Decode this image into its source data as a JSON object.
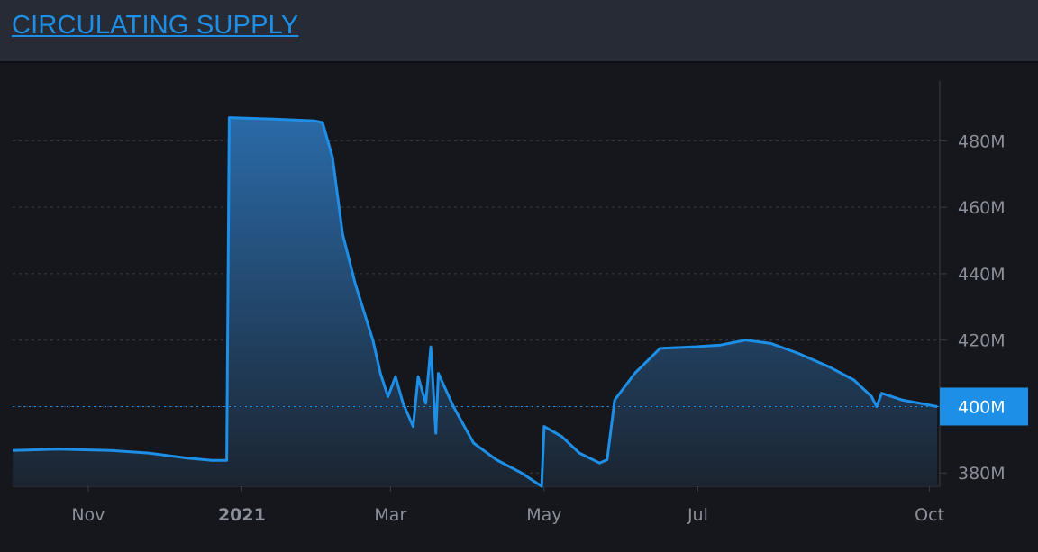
{
  "header": {
    "title": "CIRCULATING SUPPLY"
  },
  "colors": {
    "line": "#1e8fe6",
    "area_top": "#2a6aa8",
    "area_bottom": "#1b2430",
    "grid": "#3a3e48",
    "current_badge": "#1e8fe6"
  },
  "chart_data": {
    "type": "area",
    "title": "CIRCULATING SUPPLY",
    "xlabel": "",
    "ylabel": "",
    "x_ticks": [
      "Nov",
      "2021",
      "Mar",
      "May",
      "Jul",
      "Oct"
    ],
    "y_ticks": [
      "480M",
      "460M",
      "440M",
      "420M",
      "400M",
      "380M"
    ],
    "y_tick_values": [
      480,
      460,
      440,
      420,
      400,
      380
    ],
    "ylim": [
      376,
      498
    ],
    "xlim": [
      "2020-10-02",
      "2021-10-04"
    ],
    "grid": "horizontal-dashed",
    "current_value_label": "400M",
    "current_value": 400,
    "series": [
      {
        "unit": "M",
        "points": [
          [
            "2020-10-02",
            386.8
          ],
          [
            "2020-10-20",
            387.2
          ],
          [
            "2020-11-10",
            386.8
          ],
          [
            "2020-11-25",
            386.0
          ],
          [
            "2020-12-10",
            384.5
          ],
          [
            "2020-12-20",
            383.8
          ],
          [
            "2020-12-26",
            383.8
          ],
          [
            "2020-12-27",
            487.0
          ],
          [
            "2021-01-15",
            486.5
          ],
          [
            "2021-01-30",
            486.0
          ],
          [
            "2021-02-02",
            485.5
          ],
          [
            "2021-02-06",
            475.0
          ],
          [
            "2021-02-10",
            452.0
          ],
          [
            "2021-02-15",
            437.0
          ],
          [
            "2021-02-22",
            420.0
          ],
          [
            "2021-02-25",
            410.0
          ],
          [
            "2021-02-28",
            403.0
          ],
          [
            "2021-03-03",
            409.0
          ],
          [
            "2021-03-06",
            401.0
          ],
          [
            "2021-03-10",
            394.0
          ],
          [
            "2021-03-12",
            409.0
          ],
          [
            "2021-03-15",
            401.0
          ],
          [
            "2021-03-17",
            418.0
          ],
          [
            "2021-03-19",
            392.0
          ],
          [
            "2021-03-20",
            410.0
          ],
          [
            "2021-03-26",
            400.0
          ],
          [
            "2021-04-03",
            389.0
          ],
          [
            "2021-04-12",
            384.0
          ],
          [
            "2021-04-22",
            380.0
          ],
          [
            "2021-04-30",
            376.0
          ],
          [
            "2021-05-01",
            394.0
          ],
          [
            "2021-05-08",
            391.0
          ],
          [
            "2021-05-15",
            386.0
          ],
          [
            "2021-05-23",
            383.0
          ],
          [
            "2021-05-26",
            384.0
          ],
          [
            "2021-05-29",
            402.0
          ],
          [
            "2021-06-06",
            410.0
          ],
          [
            "2021-06-16",
            417.5
          ],
          [
            "2021-06-30",
            418.0
          ],
          [
            "2021-07-10",
            418.5
          ],
          [
            "2021-07-20",
            420.0
          ],
          [
            "2021-07-30",
            419.0
          ],
          [
            "2021-08-10",
            416.0
          ],
          [
            "2021-08-22",
            412.0
          ],
          [
            "2021-09-01",
            408.0
          ],
          [
            "2021-09-08",
            403.0
          ],
          [
            "2021-09-10",
            400.0
          ],
          [
            "2021-09-12",
            404.0
          ],
          [
            "2021-09-20",
            402.0
          ],
          [
            "2021-10-04",
            400.0
          ]
        ]
      }
    ]
  }
}
